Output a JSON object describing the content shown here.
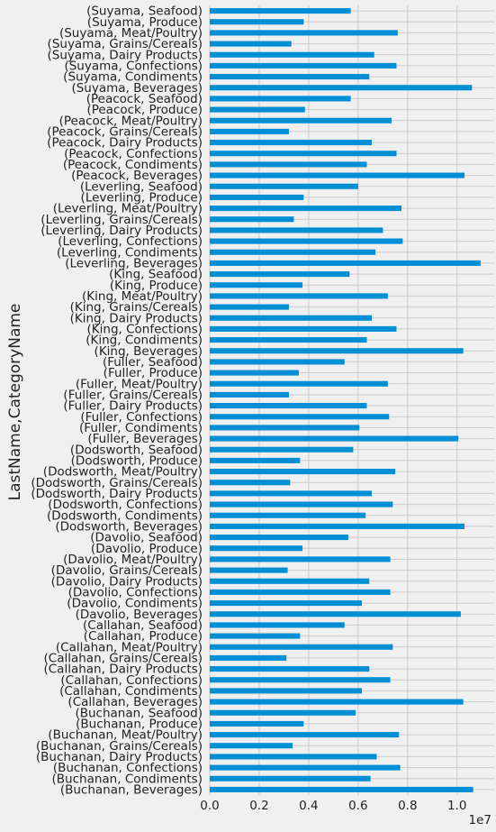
{
  "chart_data": {
    "type": "bar",
    "orientation": "horizontal",
    "ylabel": "LastName,CategoryName",
    "xlabel": "",
    "x_offset_label": "1e7",
    "xlim": [
      0,
      11500000
    ],
    "x_ticks": [
      0,
      2000000,
      4000000,
      6000000,
      8000000,
      10000000
    ],
    "x_tick_labels": [
      "0.0",
      "0.2",
      "0.4",
      "0.6",
      "0.8",
      "1.0"
    ],
    "grid": true,
    "bar_color": "#008fd5",
    "categories": [
      "(Buchanan, Beverages)",
      "(Buchanan, Condiments)",
      "(Buchanan, Confections)",
      "(Buchanan, Dairy Products)",
      "(Buchanan, Grains/Cereals)",
      "(Buchanan, Meat/Poultry)",
      "(Buchanan, Produce)",
      "(Buchanan, Seafood)",
      "(Callahan, Beverages)",
      "(Callahan, Condiments)",
      "(Callahan, Confections)",
      "(Callahan, Dairy Products)",
      "(Callahan, Grains/Cereals)",
      "(Callahan, Meat/Poultry)",
      "(Callahan, Produce)",
      "(Callahan, Seafood)",
      "(Davolio, Beverages)",
      "(Davolio, Condiments)",
      "(Davolio, Confections)",
      "(Davolio, Dairy Products)",
      "(Davolio, Grains/Cereals)",
      "(Davolio, Meat/Poultry)",
      "(Davolio, Produce)",
      "(Davolio, Seafood)",
      "(Dodsworth, Beverages)",
      "(Dodsworth, Condiments)",
      "(Dodsworth, Confections)",
      "(Dodsworth, Dairy Products)",
      "(Dodsworth, Grains/Cereals)",
      "(Dodsworth, Meat/Poultry)",
      "(Dodsworth, Produce)",
      "(Dodsworth, Seafood)",
      "(Fuller, Beverages)",
      "(Fuller, Condiments)",
      "(Fuller, Confections)",
      "(Fuller, Dairy Products)",
      "(Fuller, Grains/Cereals)",
      "(Fuller, Meat/Poultry)",
      "(Fuller, Produce)",
      "(Fuller, Seafood)",
      "(King, Beverages)",
      "(King, Condiments)",
      "(King, Confections)",
      "(King, Dairy Products)",
      "(King, Grains/Cereals)",
      "(King, Meat/Poultry)",
      "(King, Produce)",
      "(King, Seafood)",
      "(Leverling, Beverages)",
      "(Leverling, Condiments)",
      "(Leverling, Confections)",
      "(Leverling, Dairy Products)",
      "(Leverling, Grains/Cereals)",
      "(Leverling, Meat/Poultry)",
      "(Leverling, Produce)",
      "(Leverling, Seafood)",
      "(Peacock, Beverages)",
      "(Peacock, Condiments)",
      "(Peacock, Confections)",
      "(Peacock, Dairy Products)",
      "(Peacock, Grains/Cereals)",
      "(Peacock, Meat/Poultry)",
      "(Peacock, Produce)",
      "(Peacock, Seafood)",
      "(Suyama, Beverages)",
      "(Suyama, Condiments)",
      "(Suyama, Confections)",
      "(Suyama, Dairy Products)",
      "(Suyama, Grains/Cereals)",
      "(Suyama, Meat/Poultry)",
      "(Suyama, Produce)",
      "(Suyama, Seafood)"
    ],
    "values": [
      10650000,
      6500000,
      7700000,
      6750000,
      3350000,
      7650000,
      3800000,
      5900000,
      10250000,
      6150000,
      7300000,
      6450000,
      3100000,
      7400000,
      3650000,
      5450000,
      10150000,
      6150000,
      7300000,
      6450000,
      3150000,
      7300000,
      3750000,
      5600000,
      10300000,
      6300000,
      7400000,
      6550000,
      3250000,
      7500000,
      3650000,
      5800000,
      10050000,
      6050000,
      7250000,
      6350000,
      3200000,
      7200000,
      3600000,
      5450000,
      10250000,
      6350000,
      7550000,
      6550000,
      3200000,
      7200000,
      3750000,
      5650000,
      10950000,
      6700000,
      7800000,
      7000000,
      3400000,
      7750000,
      3800000,
      6000000,
      10300000,
      6350000,
      7550000,
      6550000,
      3200000,
      7350000,
      3850000,
      5700000,
      10600000,
      6450000,
      7550000,
      6650000,
      3300000,
      7600000,
      3800000,
      5700000
    ]
  }
}
